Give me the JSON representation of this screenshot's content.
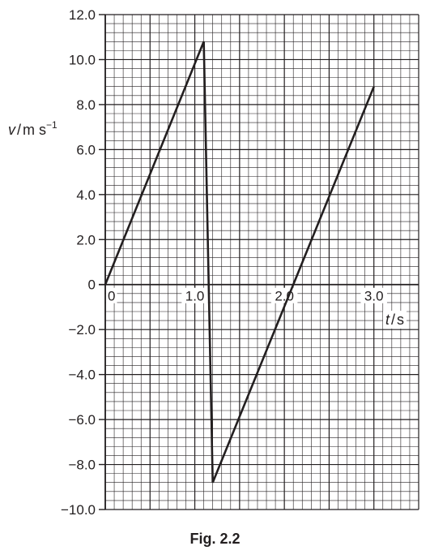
{
  "figure_label": "Fig. 2.2",
  "chart_data": {
    "type": "line",
    "title": "",
    "xlabel_var": "t",
    "xlabel_unit": "s",
    "ylabel_var": "v",
    "ylabel_unit": "m s",
    "ylabel_unit_exp": "−1",
    "xlim": [
      0,
      3.5
    ],
    "ylim": [
      -10,
      12
    ],
    "grid": true,
    "x_ticks": [
      {
        "value": 0,
        "label": "0"
      },
      {
        "value": 1,
        "label": "1.0"
      },
      {
        "value": 2,
        "label": "2.0"
      },
      {
        "value": 3,
        "label": "3.0"
      }
    ],
    "y_ticks": [
      {
        "value": 12,
        "label": "12.0"
      },
      {
        "value": 10,
        "label": "10.0"
      },
      {
        "value": 8,
        "label": "8.0"
      },
      {
        "value": 6,
        "label": "6.0"
      },
      {
        "value": 4,
        "label": "4.0"
      },
      {
        "value": 2,
        "label": "2.0"
      },
      {
        "value": 0,
        "label": "0"
      },
      {
        "value": -2,
        "label": "−2.0"
      },
      {
        "value": -4,
        "label": "−4.0"
      },
      {
        "value": -6,
        "label": "−6.0"
      },
      {
        "value": -8,
        "label": "−8.0"
      },
      {
        "value": -10,
        "label": "−10.0"
      }
    ],
    "series": [
      {
        "x": [
          0,
          1.1,
          1.2,
          3.0
        ],
        "y": [
          0,
          10.8,
          -8.8,
          8.8
        ]
      }
    ]
  }
}
